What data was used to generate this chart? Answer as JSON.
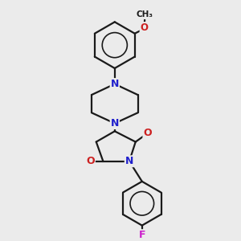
{
  "bg_color": "#ebebeb",
  "bond_color": "#1a1a1a",
  "n_color": "#2020cc",
  "o_color": "#cc2020",
  "f_color": "#cc20cc",
  "line_width": 1.6,
  "figsize": [
    3.0,
    3.0
  ],
  "dpi": 100,
  "xlim": [
    0,
    10
  ],
  "ylim": [
    0,
    10
  ]
}
